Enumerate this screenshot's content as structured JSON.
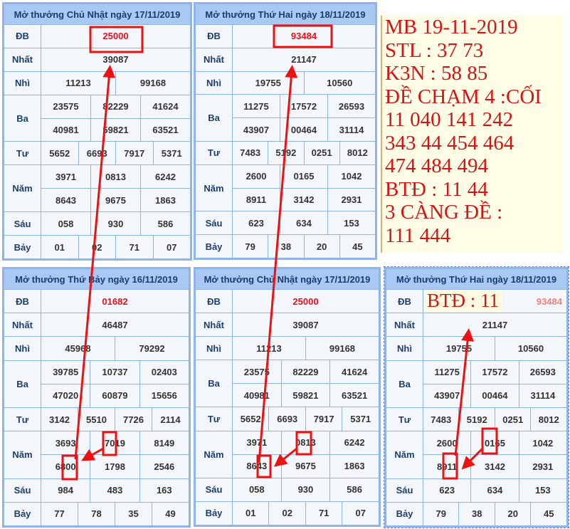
{
  "tables": [
    {
      "id": "t1",
      "title": "Mở thưởng Chủ Nhật ngày 17/11/2019",
      "db": "25000",
      "nhat": "39087",
      "nhi": [
        "11213",
        "99168"
      ],
      "ba": [
        "23575",
        "82229",
        "41624",
        "40981",
        "59821",
        "63521"
      ],
      "tu": [
        "5652",
        "6693",
        "7917",
        "5371"
      ],
      "nam": [
        "3971",
        "0813",
        "6242",
        "8643",
        "9675",
        "1863"
      ],
      "sau": [
        "058",
        "930",
        "586"
      ],
      "bay": [
        "01",
        "02",
        "71",
        "07"
      ]
    },
    {
      "id": "t2",
      "title": "Mở thưởng Thứ Hai ngày 18/11/2019",
      "db": "93484",
      "nhat": "21147",
      "nhi": [
        "19755",
        "10560"
      ],
      "ba": [
        "11275",
        "17572",
        "26593",
        "43907",
        "00464",
        "31114"
      ],
      "tu": [
        "7483",
        "5192",
        "0251",
        "8012"
      ],
      "nam": [
        "2600",
        "0165",
        "1042",
        "8911",
        "3142",
        "2931"
      ],
      "sau": [
        "623",
        "634",
        "153"
      ],
      "bay": [
        "79",
        "38",
        "20",
        "45"
      ]
    },
    {
      "id": "t3",
      "title": "Mở thưởng Thứ Bảy ngày 16/11/2019",
      "db": "01682",
      "nhat": "46487",
      "nhi": [
        "45968",
        "79292"
      ],
      "ba": [
        "39785",
        "10737",
        "02403",
        "47020",
        "60879",
        "15656"
      ],
      "tu": [
        "3142",
        "5510",
        "7726",
        "2114"
      ],
      "nam": [
        "3693",
        "7019",
        "8149",
        "6800",
        "1798",
        "2546"
      ],
      "sau": [
        "984",
        "483",
        "163"
      ],
      "bay": [
        "77",
        "78",
        "35",
        "49"
      ]
    },
    {
      "id": "t4",
      "title": "Mở thưởng Chủ Nhật ngày 17/11/2019",
      "db": "25000",
      "nhat": "39087",
      "nhi": [
        "11213",
        "99168"
      ],
      "ba": [
        "23575",
        "82229",
        "41624",
        "40981",
        "59821",
        "63521"
      ],
      "tu": [
        "5652",
        "6693",
        "7917",
        "5371"
      ],
      "nam": [
        "3971",
        "0813",
        "6242",
        "8643",
        "9675",
        "1863"
      ],
      "sau": [
        "058",
        "930",
        "586"
      ],
      "bay": [
        "01",
        "02",
        "71",
        "07"
      ]
    },
    {
      "id": "t5",
      "title": "Mở thưởng Thứ Hai ngày 18/11/2019",
      "db": "93484",
      "nhat": "21147",
      "nhi": [
        "19755",
        "10560"
      ],
      "ba": [
        "11275",
        "17572",
        "26593",
        "43907",
        "00464",
        "31114"
      ],
      "tu": [
        "7483",
        "5192",
        "0251",
        "8012"
      ],
      "nam": [
        "2600",
        "0165",
        "1042",
        "8911",
        "3142",
        "2931"
      ],
      "sau": [
        "623",
        "634",
        "153"
      ],
      "bay": [
        "79",
        "38",
        "20",
        "45"
      ]
    }
  ],
  "labels": {
    "db": "ĐB",
    "nhat": "Nhất",
    "nhi": "Nhì",
    "ba": "Ba",
    "tu": "Tư",
    "nam": "Năm",
    "sau": "Sáu",
    "bay": "Bảy"
  },
  "panel": {
    "lines": [
      "MB 19-11-2019",
      "STL : 37 73",
      "K3N : 58 85",
      "ĐỀ CHẠM 4 :CỐI",
      "11 040 141 242",
      "343 44 454 464",
      "474 484 494",
      "BTĐ : 11 44",
      "3 CÀNG ĐỀ :",
      "111 444"
    ]
  },
  "overlay_text": "BTĐ : 11",
  "colors": {
    "annotation": "#ee1111",
    "header": "#a9c8f2",
    "db_text": "#e8101a",
    "panel_bg": "#fffde6"
  }
}
